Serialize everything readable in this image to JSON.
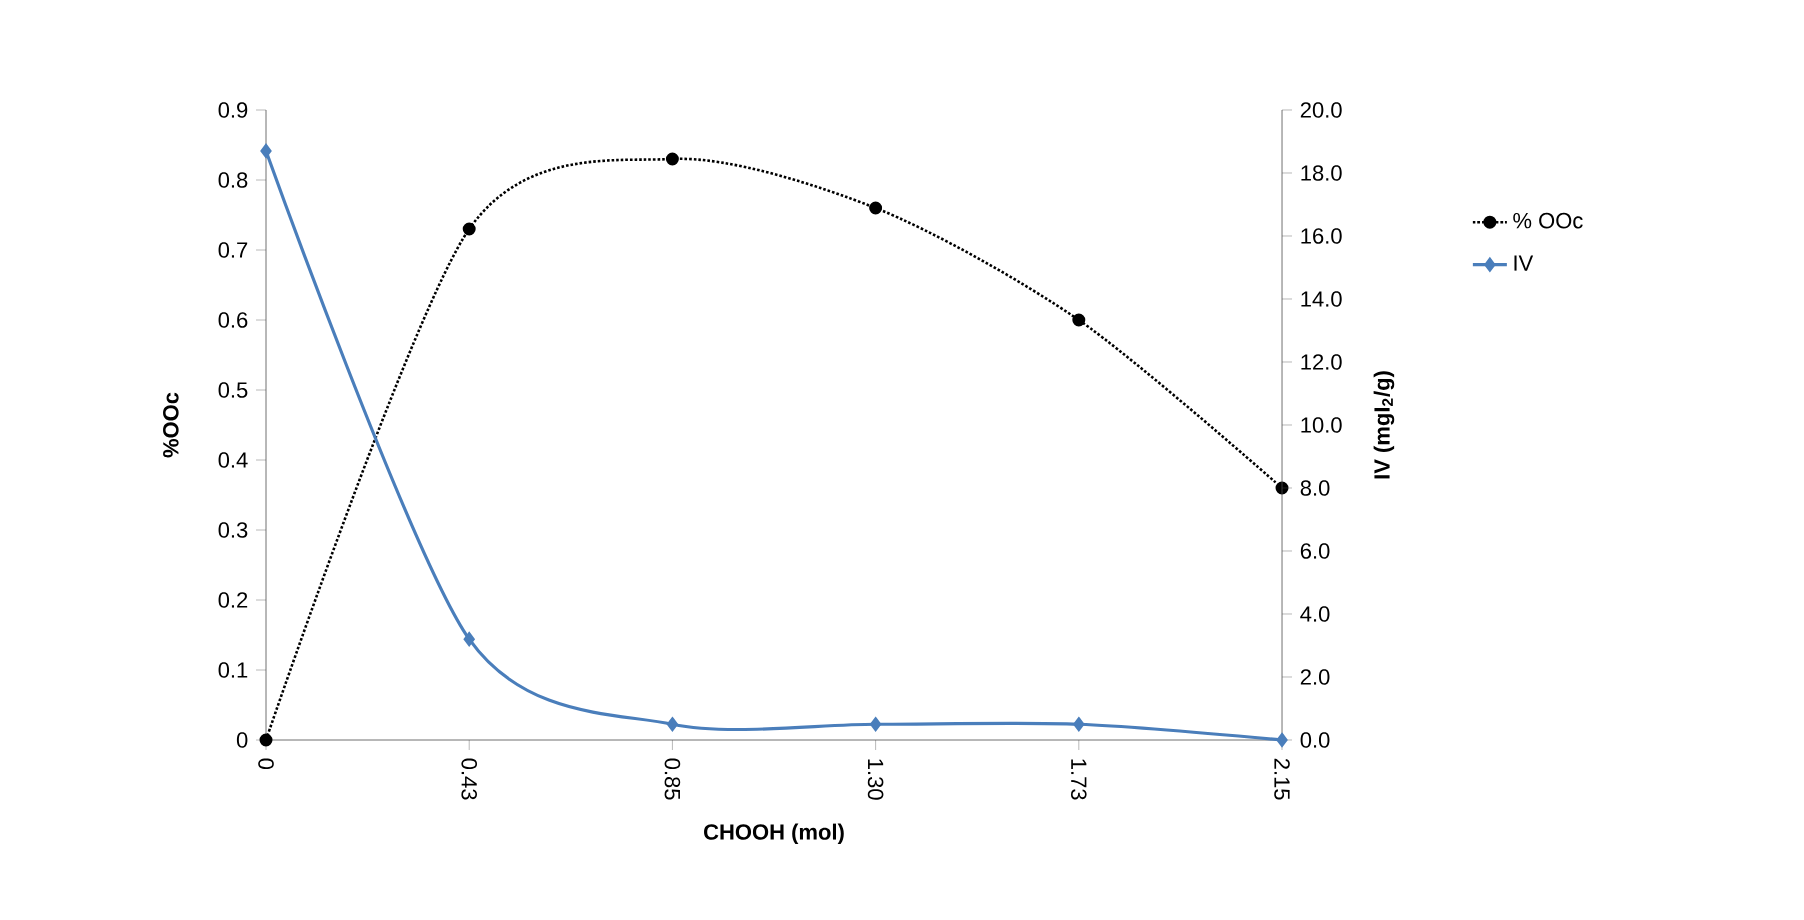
{
  "chart_data": {
    "type": "line",
    "xlabel": "CHOOH (mol)",
    "ylabel": "%OOc",
    "y2label": "IV (mgI$_{2}$/g)",
    "categories": [
      "0",
      "0.43",
      "0.85",
      "1.30",
      "1.73",
      "2.15"
    ],
    "series": [
      {
        "name": "% OOc",
        "color": "#000000",
        "marker": "circle",
        "line_style": "dotted",
        "values": [
          0,
          0.73,
          0.83,
          0.76,
          0.6,
          0.36
        ]
      },
      {
        "name": "IV",
        "color": "#4a7ebb",
        "marker": "diamond",
        "line_style": "solid",
        "axis": "y2",
        "values": [
          18.7,
          3.2,
          0.5,
          0.5,
          0.5,
          0.0
        ]
      }
    ],
    "ylim": [
      0,
      0.9
    ],
    "yticks": [
      0,
      0.1,
      0.2,
      0.3,
      0.4,
      0.5,
      0.6,
      0.7,
      0.8,
      0.9
    ],
    "y2lim": [
      0,
      20
    ],
    "y2ticks": [
      {
        "value": 0,
        "label": "0.0"
      },
      {
        "value": 2,
        "label": "2.0"
      },
      {
        "value": 4,
        "label": "4.0"
      },
      {
        "value": 6,
        "label": "6.0"
      },
      {
        "value": 8,
        "label": "8.0"
      },
      {
        "value": 10,
        "label": "10.0"
      },
      {
        "value": 12,
        "label": "12.0"
      },
      {
        "value": 14,
        "label": "14.0"
      },
      {
        "value": 16,
        "label": "16.0"
      },
      {
        "value": 18,
        "label": "18.0"
      },
      {
        "value": 20,
        "label": "20.0"
      }
    ],
    "grid": false,
    "legend": "right"
  }
}
